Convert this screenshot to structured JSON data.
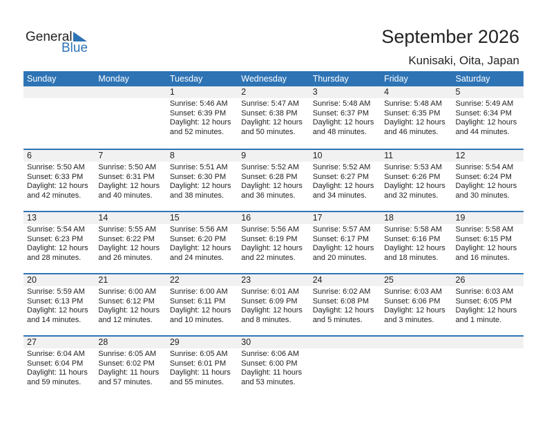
{
  "logo": {
    "text1": "General",
    "text2": "Blue",
    "color": "#2e74b5"
  },
  "title": "September 2026",
  "location": "Kunisaki, Oita, Japan",
  "days": [
    "Sunday",
    "Monday",
    "Tuesday",
    "Wednesday",
    "Thursday",
    "Friday",
    "Saturday"
  ],
  "weeks": [
    [
      null,
      null,
      {
        "day": "1",
        "sunrise": "Sunrise: 5:46 AM",
        "sunset": "Sunset: 6:39 PM",
        "daylight1": "Daylight: 12 hours",
        "daylight2": "and 52 minutes."
      },
      {
        "day": "2",
        "sunrise": "Sunrise: 5:47 AM",
        "sunset": "Sunset: 6:38 PM",
        "daylight1": "Daylight: 12 hours",
        "daylight2": "and 50 minutes."
      },
      {
        "day": "3",
        "sunrise": "Sunrise: 5:48 AM",
        "sunset": "Sunset: 6:37 PM",
        "daylight1": "Daylight: 12 hours",
        "daylight2": "and 48 minutes."
      },
      {
        "day": "4",
        "sunrise": "Sunrise: 5:48 AM",
        "sunset": "Sunset: 6:35 PM",
        "daylight1": "Daylight: 12 hours",
        "daylight2": "and 46 minutes."
      },
      {
        "day": "5",
        "sunrise": "Sunrise: 5:49 AM",
        "sunset": "Sunset: 6:34 PM",
        "daylight1": "Daylight: 12 hours",
        "daylight2": "and 44 minutes."
      }
    ],
    [
      {
        "day": "6",
        "sunrise": "Sunrise: 5:50 AM",
        "sunset": "Sunset: 6:33 PM",
        "daylight1": "Daylight: 12 hours",
        "daylight2": "and 42 minutes."
      },
      {
        "day": "7",
        "sunrise": "Sunrise: 5:50 AM",
        "sunset": "Sunset: 6:31 PM",
        "daylight1": "Daylight: 12 hours",
        "daylight2": "and 40 minutes."
      },
      {
        "day": "8",
        "sunrise": "Sunrise: 5:51 AM",
        "sunset": "Sunset: 6:30 PM",
        "daylight1": "Daylight: 12 hours",
        "daylight2": "and 38 minutes."
      },
      {
        "day": "9",
        "sunrise": "Sunrise: 5:52 AM",
        "sunset": "Sunset: 6:28 PM",
        "daylight1": "Daylight: 12 hours",
        "daylight2": "and 36 minutes."
      },
      {
        "day": "10",
        "sunrise": "Sunrise: 5:52 AM",
        "sunset": "Sunset: 6:27 PM",
        "daylight1": "Daylight: 12 hours",
        "daylight2": "and 34 minutes."
      },
      {
        "day": "11",
        "sunrise": "Sunrise: 5:53 AM",
        "sunset": "Sunset: 6:26 PM",
        "daylight1": "Daylight: 12 hours",
        "daylight2": "and 32 minutes."
      },
      {
        "day": "12",
        "sunrise": "Sunrise: 5:54 AM",
        "sunset": "Sunset: 6:24 PM",
        "daylight1": "Daylight: 12 hours",
        "daylight2": "and 30 minutes."
      }
    ],
    [
      {
        "day": "13",
        "sunrise": "Sunrise: 5:54 AM",
        "sunset": "Sunset: 6:23 PM",
        "daylight1": "Daylight: 12 hours",
        "daylight2": "and 28 minutes."
      },
      {
        "day": "14",
        "sunrise": "Sunrise: 5:55 AM",
        "sunset": "Sunset: 6:22 PM",
        "daylight1": "Daylight: 12 hours",
        "daylight2": "and 26 minutes."
      },
      {
        "day": "15",
        "sunrise": "Sunrise: 5:56 AM",
        "sunset": "Sunset: 6:20 PM",
        "daylight1": "Daylight: 12 hours",
        "daylight2": "and 24 minutes."
      },
      {
        "day": "16",
        "sunrise": "Sunrise: 5:56 AM",
        "sunset": "Sunset: 6:19 PM",
        "daylight1": "Daylight: 12 hours",
        "daylight2": "and 22 minutes."
      },
      {
        "day": "17",
        "sunrise": "Sunrise: 5:57 AM",
        "sunset": "Sunset: 6:17 PM",
        "daylight1": "Daylight: 12 hours",
        "daylight2": "and 20 minutes."
      },
      {
        "day": "18",
        "sunrise": "Sunrise: 5:58 AM",
        "sunset": "Sunset: 6:16 PM",
        "daylight1": "Daylight: 12 hours",
        "daylight2": "and 18 minutes."
      },
      {
        "day": "19",
        "sunrise": "Sunrise: 5:58 AM",
        "sunset": "Sunset: 6:15 PM",
        "daylight1": "Daylight: 12 hours",
        "daylight2": "and 16 minutes."
      }
    ],
    [
      {
        "day": "20",
        "sunrise": "Sunrise: 5:59 AM",
        "sunset": "Sunset: 6:13 PM",
        "daylight1": "Daylight: 12 hours",
        "daylight2": "and 14 minutes."
      },
      {
        "day": "21",
        "sunrise": "Sunrise: 6:00 AM",
        "sunset": "Sunset: 6:12 PM",
        "daylight1": "Daylight: 12 hours",
        "daylight2": "and 12 minutes."
      },
      {
        "day": "22",
        "sunrise": "Sunrise: 6:00 AM",
        "sunset": "Sunset: 6:11 PM",
        "daylight1": "Daylight: 12 hours",
        "daylight2": "and 10 minutes."
      },
      {
        "day": "23",
        "sunrise": "Sunrise: 6:01 AM",
        "sunset": "Sunset: 6:09 PM",
        "daylight1": "Daylight: 12 hours",
        "daylight2": "and 8 minutes."
      },
      {
        "day": "24",
        "sunrise": "Sunrise: 6:02 AM",
        "sunset": "Sunset: 6:08 PM",
        "daylight1": "Daylight: 12 hours",
        "daylight2": "and 5 minutes."
      },
      {
        "day": "25",
        "sunrise": "Sunrise: 6:03 AM",
        "sunset": "Sunset: 6:06 PM",
        "daylight1": "Daylight: 12 hours",
        "daylight2": "and 3 minutes."
      },
      {
        "day": "26",
        "sunrise": "Sunrise: 6:03 AM",
        "sunset": "Sunset: 6:05 PM",
        "daylight1": "Daylight: 12 hours",
        "daylight2": "and 1 minute."
      }
    ],
    [
      {
        "day": "27",
        "sunrise": "Sunrise: 6:04 AM",
        "sunset": "Sunset: 6:04 PM",
        "daylight1": "Daylight: 11 hours",
        "daylight2": "and 59 minutes."
      },
      {
        "day": "28",
        "sunrise": "Sunrise: 6:05 AM",
        "sunset": "Sunset: 6:02 PM",
        "daylight1": "Daylight: 11 hours",
        "daylight2": "and 57 minutes."
      },
      {
        "day": "29",
        "sunrise": "Sunrise: 6:05 AM",
        "sunset": "Sunset: 6:01 PM",
        "daylight1": "Daylight: 11 hours",
        "daylight2": "and 55 minutes."
      },
      {
        "day": "30",
        "sunrise": "Sunrise: 6:06 AM",
        "sunset": "Sunset: 6:00 PM",
        "daylight1": "Daylight: 11 hours",
        "daylight2": "and 53 minutes."
      },
      null,
      null,
      null
    ]
  ]
}
